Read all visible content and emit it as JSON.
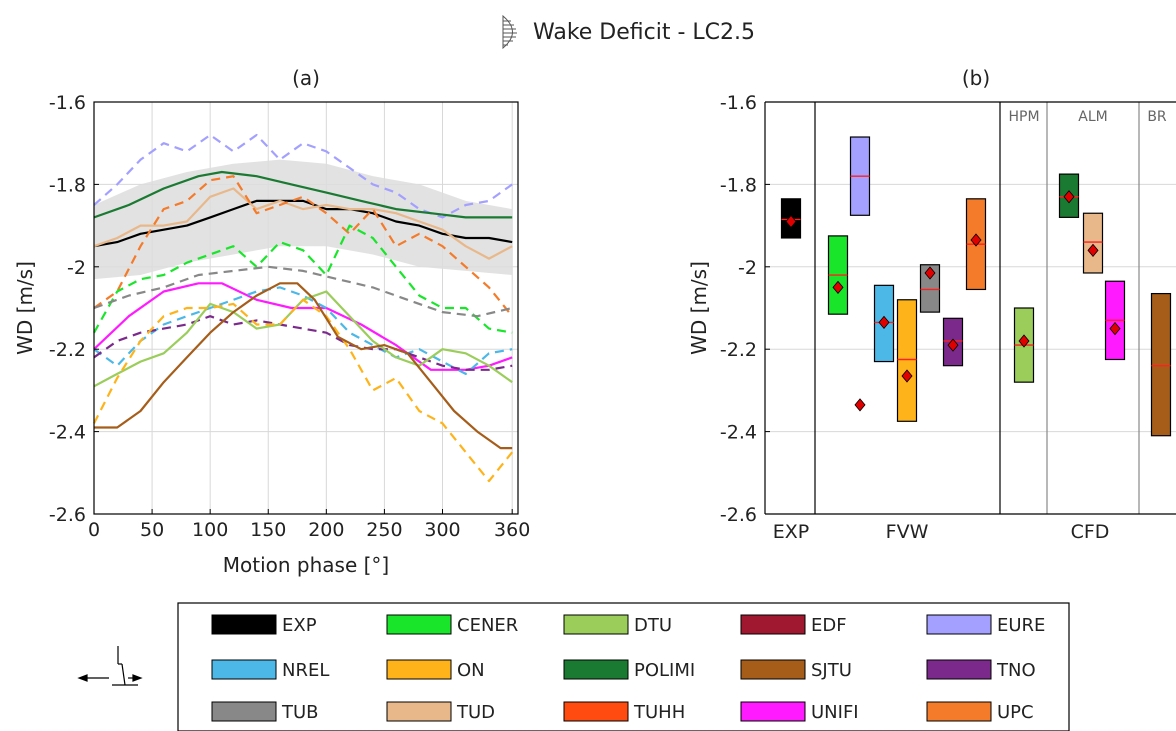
{
  "figure": {
    "title": "Wake Deficit - LC2.5",
    "title_icon": "wake-profile-icon",
    "motion_icon": "surge-motion-icon"
  },
  "chart_data": [
    {
      "id": "a",
      "type": "line",
      "panel_label": "(a)",
      "xlabel": "Motion phase [°]",
      "ylabel": "WD [m/s]",
      "xlim": [
        0,
        365
      ],
      "ylim": [
        -2.6,
        -1.6
      ],
      "xticks": [
        0,
        50,
        100,
        150,
        200,
        250,
        300,
        360
      ],
      "yticks": [
        -1.6,
        -1.8,
        -2.0,
        -2.2,
        -2.4,
        -2.6
      ],
      "ytick_labels": [
        "-1.6",
        "-1.8",
        "-2",
        "-2.2",
        "-2.4",
        "-2.6"
      ],
      "grid": true,
      "exp_band": {
        "x": [
          0,
          40,
          80,
          120,
          160,
          200,
          240,
          280,
          320,
          360
        ],
        "upper": [
          -1.85,
          -1.8,
          -1.77,
          -1.75,
          -1.74,
          -1.75,
          -1.78,
          -1.8,
          -1.84,
          -1.86
        ],
        "lower": [
          -2.03,
          -2.02,
          -1.99,
          -1.97,
          -1.95,
          -1.95,
          -1.97,
          -2.0,
          -2.01,
          -2.02
        ]
      },
      "series": [
        {
          "name": "EURE",
          "color": "#a3a0ff",
          "dash": true,
          "x": [
            0,
            20,
            40,
            60,
            80,
            100,
            120,
            140,
            160,
            180,
            200,
            220,
            240,
            260,
            280,
            300,
            320,
            340,
            360
          ],
          "y": [
            -1.85,
            -1.8,
            -1.74,
            -1.7,
            -1.72,
            -1.68,
            -1.72,
            -1.68,
            -1.74,
            -1.7,
            -1.72,
            -1.76,
            -1.8,
            -1.82,
            -1.86,
            -1.88,
            -1.85,
            -1.84,
            -1.8
          ]
        },
        {
          "name": "POLIMI",
          "color": "#1a7a32",
          "dash": false,
          "x": [
            0,
            30,
            60,
            90,
            110,
            140,
            170,
            200,
            230,
            260,
            290,
            320,
            360
          ],
          "y": [
            -1.88,
            -1.85,
            -1.81,
            -1.78,
            -1.77,
            -1.78,
            -1.8,
            -1.82,
            -1.84,
            -1.86,
            -1.87,
            -1.88,
            -1.88
          ]
        },
        {
          "name": "EXP",
          "color": "#000000",
          "dash": false,
          "x": [
            0,
            20,
            40,
            60,
            80,
            100,
            120,
            140,
            160,
            180,
            200,
            220,
            240,
            260,
            280,
            300,
            320,
            340,
            360
          ],
          "y": [
            -1.95,
            -1.94,
            -1.92,
            -1.91,
            -1.9,
            -1.88,
            -1.86,
            -1.84,
            -1.84,
            -1.84,
            -1.86,
            -1.86,
            -1.87,
            -1.89,
            -1.9,
            -1.92,
            -1.93,
            -1.93,
            -1.94
          ]
        },
        {
          "name": "TUD",
          "color": "#e8b88a",
          "dash": false,
          "x": [
            0,
            20,
            40,
            60,
            80,
            100,
            120,
            140,
            160,
            180,
            200,
            220,
            240,
            260,
            280,
            300,
            320,
            340,
            360
          ],
          "y": [
            -1.95,
            -1.93,
            -1.9,
            -1.9,
            -1.89,
            -1.83,
            -1.81,
            -1.86,
            -1.84,
            -1.86,
            -1.85,
            -1.86,
            -1.86,
            -1.87,
            -1.89,
            -1.91,
            -1.95,
            -1.98,
            -1.95
          ]
        },
        {
          "name": "UPC",
          "color": "#f47b2a",
          "dash": true,
          "x": [
            0,
            20,
            40,
            60,
            80,
            100,
            120,
            140,
            160,
            180,
            200,
            220,
            240,
            260,
            280,
            300,
            320,
            340,
            360
          ],
          "y": [
            -2.1,
            -2.06,
            -1.95,
            -1.86,
            -1.84,
            -1.79,
            -1.78,
            -1.87,
            -1.85,
            -1.83,
            -1.87,
            -1.92,
            -1.86,
            -1.95,
            -1.92,
            -1.95,
            -2.0,
            -2.05,
            -2.12
          ]
        },
        {
          "name": "CENER",
          "color": "#19e62a",
          "dash": true,
          "x": [
            0,
            20,
            40,
            60,
            80,
            100,
            120,
            140,
            160,
            180,
            200,
            220,
            240,
            260,
            280,
            300,
            320,
            340,
            360
          ],
          "y": [
            -2.16,
            -2.06,
            -2.03,
            -2.02,
            -1.99,
            -1.97,
            -1.95,
            -2.0,
            -1.94,
            -1.96,
            -2.02,
            -1.9,
            -1.93,
            -2.0,
            -2.07,
            -2.1,
            -2.1,
            -2.15,
            -2.16
          ]
        },
        {
          "name": "TUB",
          "color": "#888888",
          "dash": true,
          "x": [
            0,
            30,
            60,
            90,
            120,
            150,
            180,
            210,
            240,
            270,
            300,
            330,
            360
          ],
          "y": [
            -2.1,
            -2.07,
            -2.05,
            -2.02,
            -2.01,
            -2.0,
            -2.01,
            -2.03,
            -2.05,
            -2.08,
            -2.11,
            -2.12,
            -2.1
          ]
        },
        {
          "name": "UNIFI",
          "color": "#ff1aff",
          "dash": false,
          "x": [
            0,
            30,
            60,
            90,
            110,
            140,
            170,
            200,
            230,
            260,
            290,
            320,
            340,
            360
          ],
          "y": [
            -2.2,
            -2.12,
            -2.06,
            -2.04,
            -2.04,
            -2.08,
            -2.1,
            -2.1,
            -2.14,
            -2.19,
            -2.25,
            -2.25,
            -2.24,
            -2.22
          ]
        },
        {
          "name": "NREL",
          "color": "#4bb8e8",
          "dash": true,
          "x": [
            0,
            20,
            40,
            60,
            80,
            100,
            120,
            140,
            160,
            180,
            200,
            220,
            240,
            260,
            280,
            300,
            320,
            340,
            360
          ],
          "y": [
            -2.2,
            -2.24,
            -2.18,
            -2.14,
            -2.12,
            -2.1,
            -2.08,
            -2.06,
            -2.05,
            -2.07,
            -2.1,
            -2.16,
            -2.19,
            -2.22,
            -2.2,
            -2.23,
            -2.26,
            -2.21,
            -2.2
          ]
        },
        {
          "name": "TNO",
          "color": "#7b2a8c",
          "dash": true,
          "x": [
            0,
            20,
            40,
            60,
            80,
            100,
            120,
            140,
            160,
            180,
            200,
            220,
            240,
            260,
            280,
            300,
            320,
            340,
            360
          ],
          "y": [
            -2.22,
            -2.18,
            -2.16,
            -2.15,
            -2.14,
            -2.12,
            -2.14,
            -2.13,
            -2.14,
            -2.15,
            -2.16,
            -2.19,
            -2.2,
            -2.2,
            -2.22,
            -2.24,
            -2.25,
            -2.25,
            -2.24
          ]
        },
        {
          "name": "DTU",
          "color": "#9acd5a",
          "dash": false,
          "x": [
            0,
            20,
            40,
            60,
            80,
            100,
            120,
            140,
            160,
            180,
            200,
            220,
            240,
            260,
            280,
            300,
            320,
            340,
            360
          ],
          "y": [
            -2.29,
            -2.26,
            -2.23,
            -2.21,
            -2.16,
            -2.09,
            -2.11,
            -2.15,
            -2.14,
            -2.08,
            -2.06,
            -2.12,
            -2.18,
            -2.22,
            -2.24,
            -2.2,
            -2.21,
            -2.24,
            -2.28
          ]
        },
        {
          "name": "ON",
          "color": "#ffb31a",
          "dash": true,
          "x": [
            0,
            20,
            40,
            60,
            80,
            100,
            120,
            140,
            160,
            180,
            200,
            220,
            240,
            260,
            280,
            300,
            320,
            340,
            360
          ],
          "y": [
            -2.38,
            -2.27,
            -2.18,
            -2.12,
            -2.1,
            -2.1,
            -2.09,
            -2.14,
            -2.14,
            -2.08,
            -2.12,
            -2.2,
            -2.3,
            -2.27,
            -2.35,
            -2.38,
            -2.45,
            -2.52,
            -2.45
          ]
        },
        {
          "name": "SJTU",
          "color": "#a65d1a",
          "dash": false,
          "x": [
            0,
            20,
            40,
            60,
            80,
            100,
            120,
            140,
            160,
            175,
            190,
            210,
            230,
            250,
            270,
            290,
            310,
            330,
            350,
            360
          ],
          "y": [
            -2.39,
            -2.39,
            -2.35,
            -2.28,
            -2.22,
            -2.16,
            -2.11,
            -2.07,
            -2.04,
            -2.04,
            -2.08,
            -2.17,
            -2.2,
            -2.19,
            -2.21,
            -2.28,
            -2.35,
            -2.4,
            -2.44,
            -2.44
          ]
        }
      ]
    },
    {
      "id": "b",
      "type": "box",
      "panel_label": "(b)",
      "ylabel": "WD [m/s]",
      "ylim": [
        -2.6,
        -1.6
      ],
      "yticks": [
        -1.6,
        -1.8,
        -2.0,
        -2.2,
        -2.4,
        -2.6
      ],
      "ytick_labels": [
        "-1.6",
        "-1.8",
        "-2",
        "-2.2",
        "-2.4",
        "-2.6"
      ],
      "group_labels": [
        "EXP",
        "FVW",
        "CFD"
      ],
      "subgroup_labels": [
        "HPM",
        "ALM",
        "BR"
      ],
      "boxes": [
        {
          "name": "EXP",
          "color": "#000000",
          "low": -1.93,
          "high": -1.835,
          "median": -1.885,
          "mean": -1.89
        },
        {
          "name": "CENER",
          "color": "#19e62a",
          "low": -2.115,
          "high": -1.925,
          "median": -2.02,
          "mean": -2.05
        },
        {
          "name": "EURE",
          "color": "#a3a0ff",
          "low": -1.875,
          "high": -1.685,
          "median": -1.78,
          "mean": null,
          "outlier": -2.335
        },
        {
          "name": "NREL",
          "color": "#4bb8e8",
          "low": -2.23,
          "high": -2.045,
          "median": -2.135,
          "mean": -2.135
        },
        {
          "name": "ON",
          "color": "#ffb31a",
          "low": -2.375,
          "high": -2.08,
          "median": -2.225,
          "mean": -2.265
        },
        {
          "name": "TUB",
          "color": "#888888",
          "low": -2.11,
          "high": -1.995,
          "median": -2.055,
          "mean": -2.015
        },
        {
          "name": "TNO",
          "color": "#7b2a8c",
          "low": -2.24,
          "high": -2.125,
          "median": -2.18,
          "mean": -2.19
        },
        {
          "name": "UPC",
          "color": "#f47b2a",
          "low": -2.055,
          "high": -1.835,
          "median": -1.945,
          "mean": -1.935
        },
        {
          "name": "DTU",
          "color": "#9acd5a",
          "low": -2.28,
          "high": -2.1,
          "median": -2.19,
          "mean": -2.18
        },
        {
          "name": "POLIMI",
          "color": "#1a7a32",
          "low": -1.88,
          "high": -1.775,
          "median": -1.83,
          "mean": -1.83
        },
        {
          "name": "TUD",
          "color": "#e8b88a",
          "low": -2.015,
          "high": -1.87,
          "median": -1.94,
          "mean": -1.96
        },
        {
          "name": "UNIFI",
          "color": "#ff1aff",
          "low": -2.225,
          "high": -2.035,
          "median": -2.13,
          "mean": -2.15
        },
        {
          "name": "SJTU",
          "color": "#a65d1a",
          "low": -2.41,
          "high": -2.065,
          "median": -2.24,
          "mean": null
        }
      ]
    }
  ],
  "legend": [
    {
      "name": "EXP",
      "color": "#000000"
    },
    {
      "name": "CENER",
      "color": "#19e62a"
    },
    {
      "name": "DTU",
      "color": "#9acd5a"
    },
    {
      "name": "EDF",
      "color": "#a01830"
    },
    {
      "name": "EURE",
      "color": "#a3a0ff"
    },
    {
      "name": "NREL",
      "color": "#4bb8e8"
    },
    {
      "name": "ON",
      "color": "#ffb31a"
    },
    {
      "name": "POLIMI",
      "color": "#1a7a32"
    },
    {
      "name": "SJTU",
      "color": "#a65d1a"
    },
    {
      "name": "TNO",
      "color": "#7b2a8c"
    },
    {
      "name": "TUB",
      "color": "#888888"
    },
    {
      "name": "TUD",
      "color": "#e8b88a"
    },
    {
      "name": "TUHH",
      "color": "#ff4a10"
    },
    {
      "name": "UNIFI",
      "color": "#ff1aff"
    },
    {
      "name": "UPC",
      "color": "#f47b2a"
    }
  ],
  "colors": {
    "marker": "#e00000",
    "median": "#ff2020",
    "band": "#dddddd",
    "grid": "#d8d8d8"
  }
}
